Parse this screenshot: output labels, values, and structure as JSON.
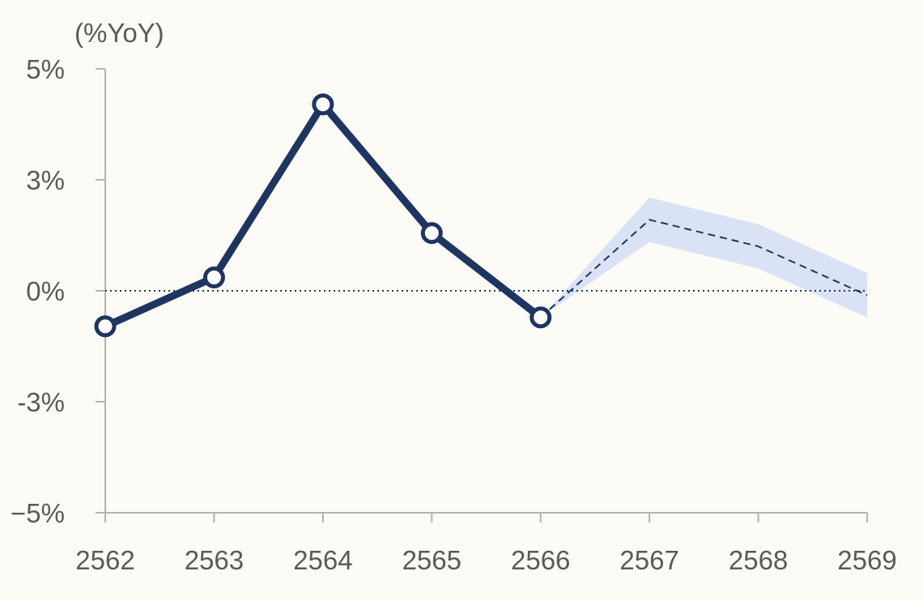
{
  "colors": {
    "background": "#fdfbf6",
    "actual_line": "#1e3562",
    "forecast_line": "#1e3562",
    "forecast_band": "#d9e3f5",
    "axis": "#b3b3b3",
    "zero_line": "#1e3562",
    "text": "#5a5a5a"
  },
  "chart_data": {
    "type": "line",
    "unit_label": "(%YoY)",
    "categories": [
      "2562",
      "2563",
      "2564",
      "2565",
      "2566",
      "2567",
      "2568",
      "2569"
    ],
    "y_tick_labels": [
      "5%",
      "3%",
      "0%",
      "-3%",
      "−5%"
    ],
    "y_tick_values": [
      5,
      2.5,
      0,
      -2.5,
      -5
    ],
    "ylim": [
      -5,
      5
    ],
    "series": [
      {
        "kind": "actual",
        "style": "solid-with-markers",
        "x": [
          "2562",
          "2563",
          "2564",
          "2565",
          "2566"
        ],
        "values": [
          -0.8,
          0.3,
          4.2,
          1.3,
          -0.6
        ]
      },
      {
        "kind": "forecast",
        "style": "dashed",
        "x": [
          "2566",
          "2567",
          "2568",
          "2569"
        ],
        "values": [
          -0.6,
          1.6,
          1.0,
          -0.1
        ]
      }
    ],
    "forecast_band": {
      "x": [
        "2566",
        "2567",
        "2568",
        "2569"
      ],
      "upper": [
        -0.6,
        2.1,
        1.5,
        0.4
      ],
      "lower": [
        -0.6,
        1.1,
        0.5,
        -0.6
      ]
    },
    "reference_line": {
      "y": 0,
      "style": "dotted"
    },
    "grid": false,
    "legend": "none"
  }
}
